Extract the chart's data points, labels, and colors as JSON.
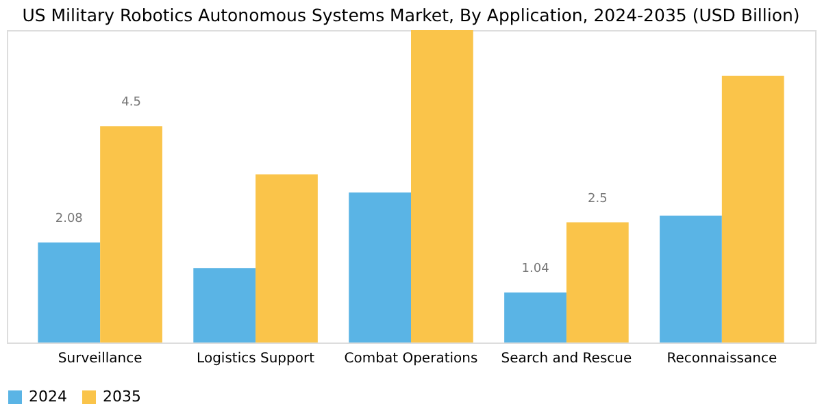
{
  "chart_data": {
    "type": "bar",
    "title": "US Military Robotics Autonomous Systems Market, By Application, 2024-2035 (USD Billion)",
    "categories": [
      "Surveillance",
      "Logistics Support",
      "Combat Operations",
      "Search and Rescue",
      "Reconnaissance"
    ],
    "series": [
      {
        "name": "2024",
        "color": "#5ab4e5",
        "values": [
          2.08,
          1.55,
          3.12,
          1.04,
          2.64
        ],
        "value_labels": [
          "2.08",
          null,
          null,
          "1.04",
          null
        ]
      },
      {
        "name": "2035",
        "color": "#fac44a",
        "values": [
          4.5,
          3.5,
          6.5,
          2.5,
          5.55
        ],
        "value_labels": [
          "4.5",
          null,
          null,
          "2.5",
          null
        ]
      }
    ],
    "legend": "bottom",
    "grid": false
  }
}
